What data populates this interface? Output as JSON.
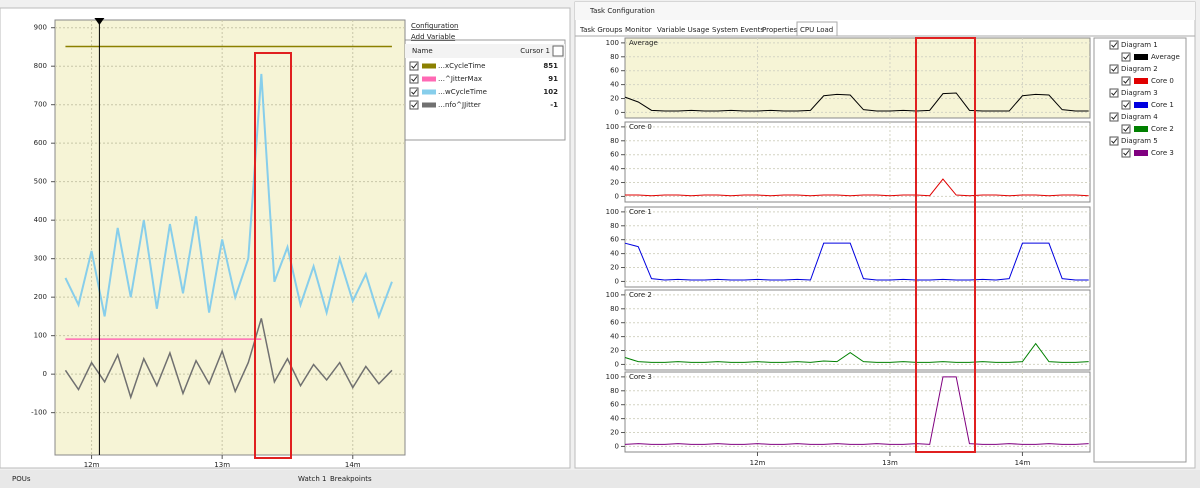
{
  "chart_data": [
    {
      "type": "line",
      "links": [
        "Configuration",
        "Add Variable"
      ],
      "table_header": [
        "Name",
        "Cursor 1"
      ],
      "cursor": 12.06,
      "xlim": [
        11.72,
        14.4
      ],
      "ylim": [
        -210,
        920
      ],
      "xticks": [
        {
          "value": 12,
          "label": "12m"
        },
        {
          "value": 13,
          "label": "13m"
        },
        {
          "value": 14,
          "label": "14m"
        }
      ],
      "yticks": [
        -100,
        0,
        100,
        200,
        300,
        400,
        500,
        600,
        700,
        800,
        900
      ],
      "grid": true,
      "x": [
        11.8,
        11.9,
        12.0,
        12.1,
        12.2,
        12.3,
        12.4,
        12.5,
        12.6,
        12.7,
        12.8,
        12.9,
        13.0,
        13.1,
        13.2,
        13.3,
        13.4,
        13.5,
        13.6,
        13.7,
        13.8,
        13.9,
        14.0,
        14.1,
        14.2,
        14.3
      ],
      "series": [
        {
          "name": "…xCycleTime",
          "color": "#8b8000",
          "cursor_value": 851,
          "values": [
            851,
            851,
            851,
            851,
            851,
            851,
            851,
            851,
            851,
            851,
            851,
            851,
            851,
            851,
            851,
            851,
            851,
            851,
            851,
            851,
            851,
            851,
            851,
            851,
            851,
            851
          ]
        },
        {
          "name": "…^JitterMax",
          "color": "#ff69b4",
          "cursor_value": 91,
          "values": [
            91,
            91,
            91,
            91,
            91,
            91,
            91,
            91,
            91,
            91,
            91,
            91,
            91,
            91,
            91,
            91,
            null,
            null,
            null,
            null,
            null,
            null,
            null,
            null,
            null,
            null
          ]
        },
        {
          "name": "…wCycleTime",
          "color": "#87ceeb",
          "cursor_value": 102,
          "values": [
            250,
            180,
            320,
            150,
            380,
            200,
            400,
            170,
            390,
            210,
            410,
            160,
            350,
            200,
            300,
            780,
            240,
            330,
            180,
            280,
            160,
            300,
            190,
            260,
            150,
            240
          ]
        },
        {
          "name": "…nfo^JJitter",
          "color": "#707070",
          "cursor_value": -1,
          "values": [
            10,
            -40,
            30,
            -20,
            50,
            -60,
            40,
            -30,
            55,
            -50,
            35,
            -25,
            60,
            -45,
            30,
            145,
            -20,
            40,
            -30,
            25,
            -15,
            30,
            -35,
            20,
            -25,
            10
          ]
        }
      ]
    },
    {
      "type": "line",
      "window_title": "Task Configuration",
      "tabs": [
        "Task Groups",
        "Monitor",
        "Variable Usage",
        "System Events",
        "Properties",
        "CPU Load"
      ],
      "xlim": [
        11.0,
        14.51
      ],
      "ylim": [
        -8,
        107
      ],
      "xticks": [
        {
          "value": 12,
          "label": "12m"
        },
        {
          "value": 13,
          "label": "13m"
        },
        {
          "value": 14,
          "label": "14m"
        }
      ],
      "yticks": [
        0,
        20,
        40,
        60,
        80,
        100
      ],
      "grid": true,
      "x": [
        11.0,
        11.1,
        11.2,
        11.3,
        11.4,
        11.5,
        11.6,
        11.7,
        11.8,
        11.9,
        12.0,
        12.1,
        12.2,
        12.3,
        12.4,
        12.5,
        12.6,
        12.7,
        12.8,
        12.9,
        13.0,
        13.1,
        13.2,
        13.3,
        13.4,
        13.5,
        13.6,
        13.7,
        13.8,
        13.9,
        14.0,
        14.1,
        14.2,
        14.3,
        14.4,
        14.5
      ],
      "panels": [
        {
          "diagram": "Diagram 1",
          "series": [
            {
              "name": "Average",
              "color": "#000000",
              "values": [
                22,
                15,
                3,
                2,
                2,
                3,
                2,
                2,
                3,
                2,
                2,
                3,
                2,
                2,
                3,
                24,
                26,
                25,
                4,
                2,
                2,
                3,
                2,
                3,
                27,
                28,
                3,
                2,
                2,
                2,
                24,
                26,
                25,
                4,
                2,
                2
              ]
            }
          ]
        },
        {
          "diagram": "Diagram 2",
          "series": [
            {
              "name": "Core 0",
              "color": "#e00000",
              "values": [
                2,
                2,
                1,
                2,
                2,
                1,
                2,
                2,
                1,
                2,
                2,
                1,
                2,
                2,
                1,
                2,
                2,
                1,
                2,
                2,
                1,
                2,
                2,
                1,
                25,
                2,
                1,
                2,
                2,
                1,
                2,
                2,
                1,
                2,
                2,
                1
              ]
            }
          ]
        },
        {
          "diagram": "Diagram 3",
          "series": [
            {
              "name": "Core 1",
              "color": "#0000e0",
              "values": [
                55,
                50,
                4,
                2,
                3,
                2,
                2,
                3,
                2,
                2,
                3,
                2,
                2,
                3,
                2,
                55,
                55,
                55,
                4,
                2,
                2,
                3,
                2,
                2,
                3,
                2,
                2,
                3,
                2,
                4,
                55,
                55,
                55,
                4,
                2,
                2
              ]
            }
          ]
        },
        {
          "diagram": "Diagram 4",
          "series": [
            {
              "name": "Core 2",
              "color": "#008000",
              "values": [
                10,
                4,
                3,
                3,
                4,
                3,
                3,
                4,
                3,
                3,
                4,
                3,
                3,
                4,
                3,
                5,
                4,
                17,
                4,
                3,
                3,
                4,
                3,
                3,
                4,
                3,
                3,
                4,
                3,
                3,
                4,
                30,
                4,
                3,
                3,
                4
              ]
            }
          ]
        },
        {
          "diagram": "Diagram 5",
          "series": [
            {
              "name": "Core 3",
              "color": "#800080",
              "values": [
                3,
                4,
                3,
                3,
                4,
                3,
                3,
                4,
                3,
                3,
                4,
                3,
                3,
                4,
                3,
                3,
                4,
                3,
                3,
                4,
                3,
                3,
                4,
                3,
                100,
                100,
                4,
                3,
                3,
                4,
                3,
                3,
                4,
                3,
                3,
                4
              ]
            }
          ]
        }
      ]
    }
  ],
  "status_bar": [
    "POUs",
    "Watch 1",
    "Breakpoints"
  ]
}
